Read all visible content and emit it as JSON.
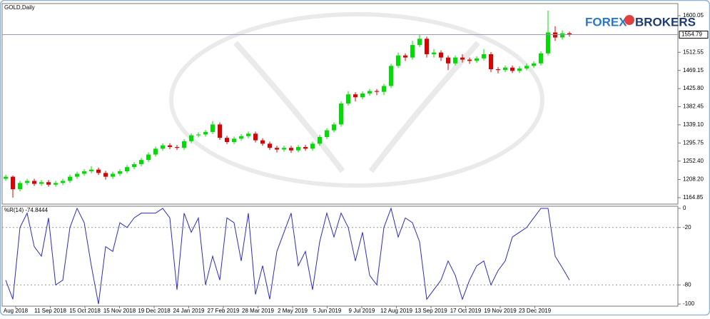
{
  "chart_data": [
    {
      "type": "candlestick",
      "title": "GOLD,Daily",
      "up_color": "#00dd00",
      "down_color": "#e00000",
      "ylim": [
        1149.5,
        1627.4
      ],
      "yticks": [
        1600.05,
        1512.55,
        1469.15,
        {
          "value": 1425.8,
          "label": "1425.80"
        },
        1382.45,
        {
          "value": 1339.1,
          "label": "1339.10"
        },
        1295.75,
        {
          "value": 1252.4,
          "label": "1252.40"
        },
        {
          "value": 1208.2,
          "label": "1208.20"
        },
        1164.85
      ],
      "current_price": 1554.79,
      "xtick_labels": [
        "Aug 2018",
        "11 Sep 2018",
        "15 Oct 2018",
        "15 Nov 2018",
        "19 Dec 2018",
        "24 Jan 2019",
        "27 Feb 2019",
        "28 Mar 2019",
        "2 May 2019",
        "5 Jun 2019",
        "9 Jul 2019",
        "12 Aug 2019",
        "13 Sep 2019",
        "17 Oct 2019",
        "19 Nov 2019",
        "23 Dec 2019"
      ],
      "candles": [
        [
          1210,
          1220,
          1205,
          1215
        ],
        [
          1215,
          1218,
          1165,
          1185
        ],
        [
          1185,
          1205,
          1180,
          1200
        ],
        [
          1200,
          1210,
          1195,
          1205
        ],
        [
          1205,
          1210,
          1193,
          1198
        ],
        [
          1198,
          1207,
          1193,
          1202
        ],
        [
          1202,
          1207,
          1191,
          1196
        ],
        [
          1196,
          1205,
          1191,
          1200
        ],
        [
          1200,
          1210,
          1195,
          1205
        ],
        [
          1205,
          1220,
          1200,
          1215
        ],
        [
          1215,
          1227,
          1210,
          1222
        ],
        [
          1222,
          1233,
          1217,
          1228
        ],
        [
          1228,
          1240,
          1223,
          1232
        ],
        [
          1232,
          1237,
          1219,
          1224
        ],
        [
          1224,
          1229,
          1208,
          1215
        ],
        [
          1215,
          1227,
          1210,
          1222
        ],
        [
          1222,
          1233,
          1217,
          1228
        ],
        [
          1228,
          1243,
          1223,
          1238
        ],
        [
          1238,
          1250,
          1233,
          1245
        ],
        [
          1245,
          1260,
          1240,
          1255
        ],
        [
          1255,
          1273,
          1250,
          1268
        ],
        [
          1268,
          1287,
          1263,
          1282
        ],
        [
          1282,
          1295,
          1277,
          1290
        ],
        [
          1290,
          1295,
          1281,
          1286
        ],
        [
          1286,
          1291,
          1279,
          1284
        ],
        [
          1284,
          1305,
          1279,
          1300
        ],
        [
          1300,
          1319,
          1295,
          1314
        ],
        [
          1314,
          1321,
          1309,
          1316
        ],
        [
          1316,
          1327,
          1311,
          1322
        ],
        [
          1322,
          1348,
          1317,
          1340
        ],
        [
          1340,
          1345,
          1303,
          1308
        ],
        [
          1308,
          1313,
          1293,
          1298
        ],
        [
          1298,
          1311,
          1293,
          1306
        ],
        [
          1306,
          1317,
          1301,
          1312
        ],
        [
          1312,
          1323,
          1307,
          1318
        ],
        [
          1318,
          1323,
          1297,
          1302
        ],
        [
          1302,
          1307,
          1289,
          1294
        ],
        [
          1294,
          1299,
          1279,
          1284
        ],
        [
          1284,
          1289,
          1273,
          1280
        ],
        [
          1280,
          1289,
          1275,
          1284
        ],
        [
          1284,
          1289,
          1272,
          1278
        ],
        [
          1278,
          1291,
          1273,
          1286
        ],
        [
          1286,
          1291,
          1277,
          1282
        ],
        [
          1282,
          1299,
          1277,
          1294
        ],
        [
          1294,
          1315,
          1289,
          1310
        ],
        [
          1310,
          1331,
          1305,
          1326
        ],
        [
          1326,
          1345,
          1321,
          1340
        ],
        [
          1340,
          1395,
          1335,
          1390
        ],
        [
          1390,
          1420,
          1385,
          1412
        ],
        [
          1412,
          1417,
          1395,
          1405
        ],
        [
          1405,
          1419,
          1400,
          1414
        ],
        [
          1414,
          1425,
          1409,
          1420
        ],
        [
          1420,
          1425,
          1410,
          1418
        ],
        [
          1418,
          1437,
          1410,
          1432
        ],
        [
          1432,
          1485,
          1427,
          1480
        ],
        [
          1480,
          1512,
          1475,
          1505
        ],
        [
          1505,
          1510,
          1492,
          1500
        ],
        [
          1500,
          1540,
          1495,
          1530
        ],
        [
          1530,
          1555,
          1525,
          1545
        ],
        [
          1545,
          1550,
          1500,
          1508
        ],
        [
          1508,
          1520,
          1500,
          1512
        ],
        [
          1512,
          1517,
          1492,
          1500
        ],
        [
          1500,
          1505,
          1470,
          1486
        ],
        [
          1486,
          1505,
          1481,
          1500
        ],
        [
          1500,
          1508,
          1488,
          1495
        ],
        [
          1495,
          1500,
          1485,
          1492
        ],
        [
          1492,
          1503,
          1487,
          1498
        ],
        [
          1498,
          1520,
          1493,
          1508
        ],
        [
          1508,
          1513,
          1465,
          1472
        ],
        [
          1472,
          1477,
          1462,
          1470
        ],
        [
          1470,
          1481,
          1465,
          1476
        ],
        [
          1476,
          1481,
          1463,
          1468
        ],
        [
          1468,
          1479,
          1463,
          1474
        ],
        [
          1474,
          1485,
          1469,
          1480
        ],
        [
          1480,
          1491,
          1475,
          1486
        ],
        [
          1486,
          1515,
          1481,
          1510
        ],
        [
          1510,
          1612,
          1505,
          1560
        ],
        [
          1560,
          1575,
          1540,
          1548
        ],
        [
          1548,
          1565,
          1543,
          1558
        ],
        [
          1558,
          1562,
          1550,
          1555
        ]
      ]
    },
    {
      "type": "line",
      "title": "%R(14) -74.8444",
      "color": "#2a2ad0",
      "ylim": [
        -102.2,
        2.2
      ],
      "yticks": [
        0,
        -20,
        -80,
        -100
      ],
      "levels": [
        -20,
        -80
      ],
      "values": [
        -75,
        -95,
        -20,
        -5,
        -40,
        -50,
        -10,
        -80,
        -75,
        -20,
        0,
        -15,
        -60,
        -100,
        -40,
        -45,
        -15,
        -20,
        -10,
        -5,
        -5,
        -5,
        0,
        -10,
        -85,
        -5,
        -25,
        -10,
        -80,
        -50,
        -75,
        -10,
        -15,
        -55,
        -5,
        -90,
        -60,
        -95,
        -45,
        -25,
        -5,
        -60,
        -45,
        -85,
        -35,
        -5,
        -30,
        -5,
        -20,
        -55,
        -25,
        -70,
        -80,
        -20,
        0,
        -30,
        -10,
        -15,
        -35,
        -95,
        -85,
        -75,
        -55,
        -70,
        -95,
        -75,
        -60,
        -55,
        -80,
        -65,
        -55,
        -30,
        -25,
        -20,
        -10,
        0,
        0,
        -50,
        -62,
        -74.8444
      ]
    }
  ],
  "logo": {
    "left": "FOREX",
    "right": "BROKERS"
  }
}
